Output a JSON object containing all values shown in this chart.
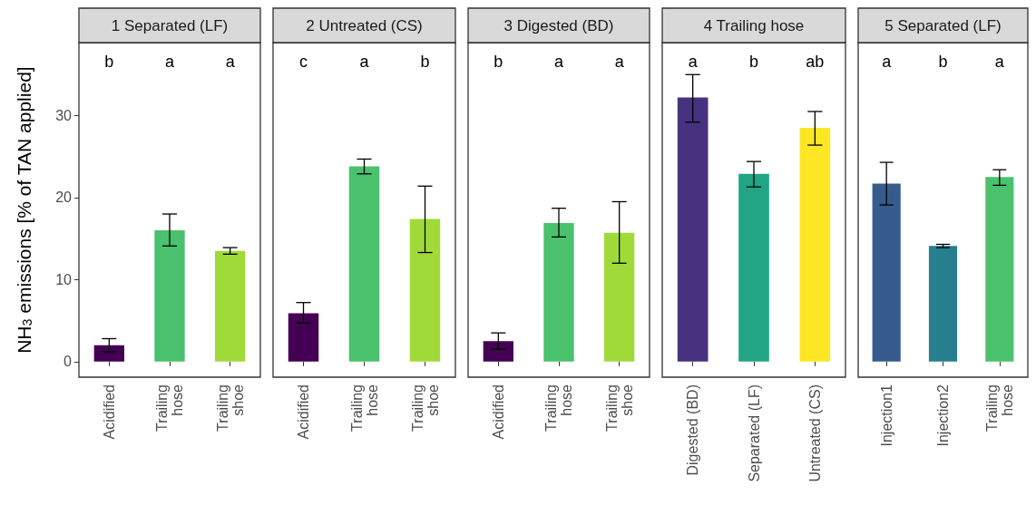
{
  "chart_data": [
    {
      "type": "bar",
      "title": "1 Separated (LF)",
      "ylabel": "NH$_{3}$ emissions [% of TAN applied]",
      "categories": [
        "Acidified",
        "Trailing\nhose",
        "Trailing\nshoe"
      ],
      "values": [
        2.0,
        16.0,
        13.5
      ],
      "colors": [
        "#440154",
        "#4ac16d",
        "#a0da39"
      ],
      "errors": [
        [
          1.2,
          2.8
        ],
        [
          14.1,
          18.0
        ],
        [
          13.1,
          13.9
        ]
      ],
      "ylim": [
        -1.9,
        38.9
      ],
      "yticks": [
        0,
        10,
        20,
        30
      ],
      "grid": false,
      "annotations": [
        "b",
        "a",
        "a"
      ]
    },
    {
      "type": "bar",
      "title": "2 Untreated (CS)",
      "categories": [
        "Acidified",
        "Trailing\nhose",
        "Trailing\nshoe"
      ],
      "values": [
        5.9,
        23.8,
        17.4
      ],
      "colors": [
        "#440154",
        "#4ac16d",
        "#a0da39"
      ],
      "errors": [
        [
          4.7,
          7.2
        ],
        [
          22.9,
          24.7
        ],
        [
          13.3,
          21.4
        ]
      ],
      "ylim": [
        -1.9,
        38.9
      ],
      "yticks": [
        0,
        10,
        20,
        30
      ],
      "tick_labels": "x",
      "grid": false,
      "annotations": [
        "c",
        "a",
        "b"
      ]
    },
    {
      "type": "bar",
      "title": "3 Digested (BD)",
      "categories": [
        "Acidified",
        "Trailing\nhose",
        "Trailing\nshoe"
      ],
      "values": [
        2.5,
        16.9,
        15.7
      ],
      "colors": [
        "#440154",
        "#4ac16d",
        "#a0da39"
      ],
      "errors": [
        [
          1.5,
          3.5
        ],
        [
          15.2,
          18.7
        ],
        [
          12.0,
          19.5
        ]
      ],
      "ylim": [
        -1.9,
        38.9
      ],
      "yticks": [
        0,
        10,
        20,
        30
      ],
      "tick_labels": "x",
      "grid": false,
      "annotations": [
        "b",
        "a",
        "a"
      ]
    },
    {
      "type": "bar",
      "title": "4 Trailing hose",
      "categories": [
        "Digested (BD)",
        "Separated (LF)",
        "Untreated (CS)"
      ],
      "values": [
        32.2,
        22.9,
        28.5
      ],
      "colors": [
        "#46327e",
        "#21a585",
        "#fde725"
      ],
      "errors": [
        [
          29.2,
          35.0
        ],
        [
          21.3,
          24.4
        ],
        [
          26.4,
          30.5
        ]
      ],
      "ylim": [
        -1.9,
        38.9
      ],
      "yticks": [
        0,
        10,
        20,
        30
      ],
      "tick_labels": "x",
      "grid": false,
      "annotations": [
        "a",
        "b",
        "ab"
      ]
    },
    {
      "type": "bar",
      "title": "5 Separated (LF)",
      "categories": [
        "Injection1",
        "Injection2",
        "Trailing\nhose"
      ],
      "values": [
        21.7,
        14.1,
        22.5
      ],
      "colors": [
        "#365c8d",
        "#277f8e",
        "#4ac16d"
      ],
      "errors": [
        [
          19.1,
          24.3
        ],
        [
          13.9,
          14.3
        ],
        [
          21.5,
          23.4
        ]
      ],
      "ylim": [
        -1.9,
        38.9
      ],
      "yticks": [
        0,
        10,
        20,
        30
      ],
      "tick_labels": "x",
      "grid": false,
      "annotations": [
        "a",
        "b",
        "a"
      ]
    }
  ]
}
